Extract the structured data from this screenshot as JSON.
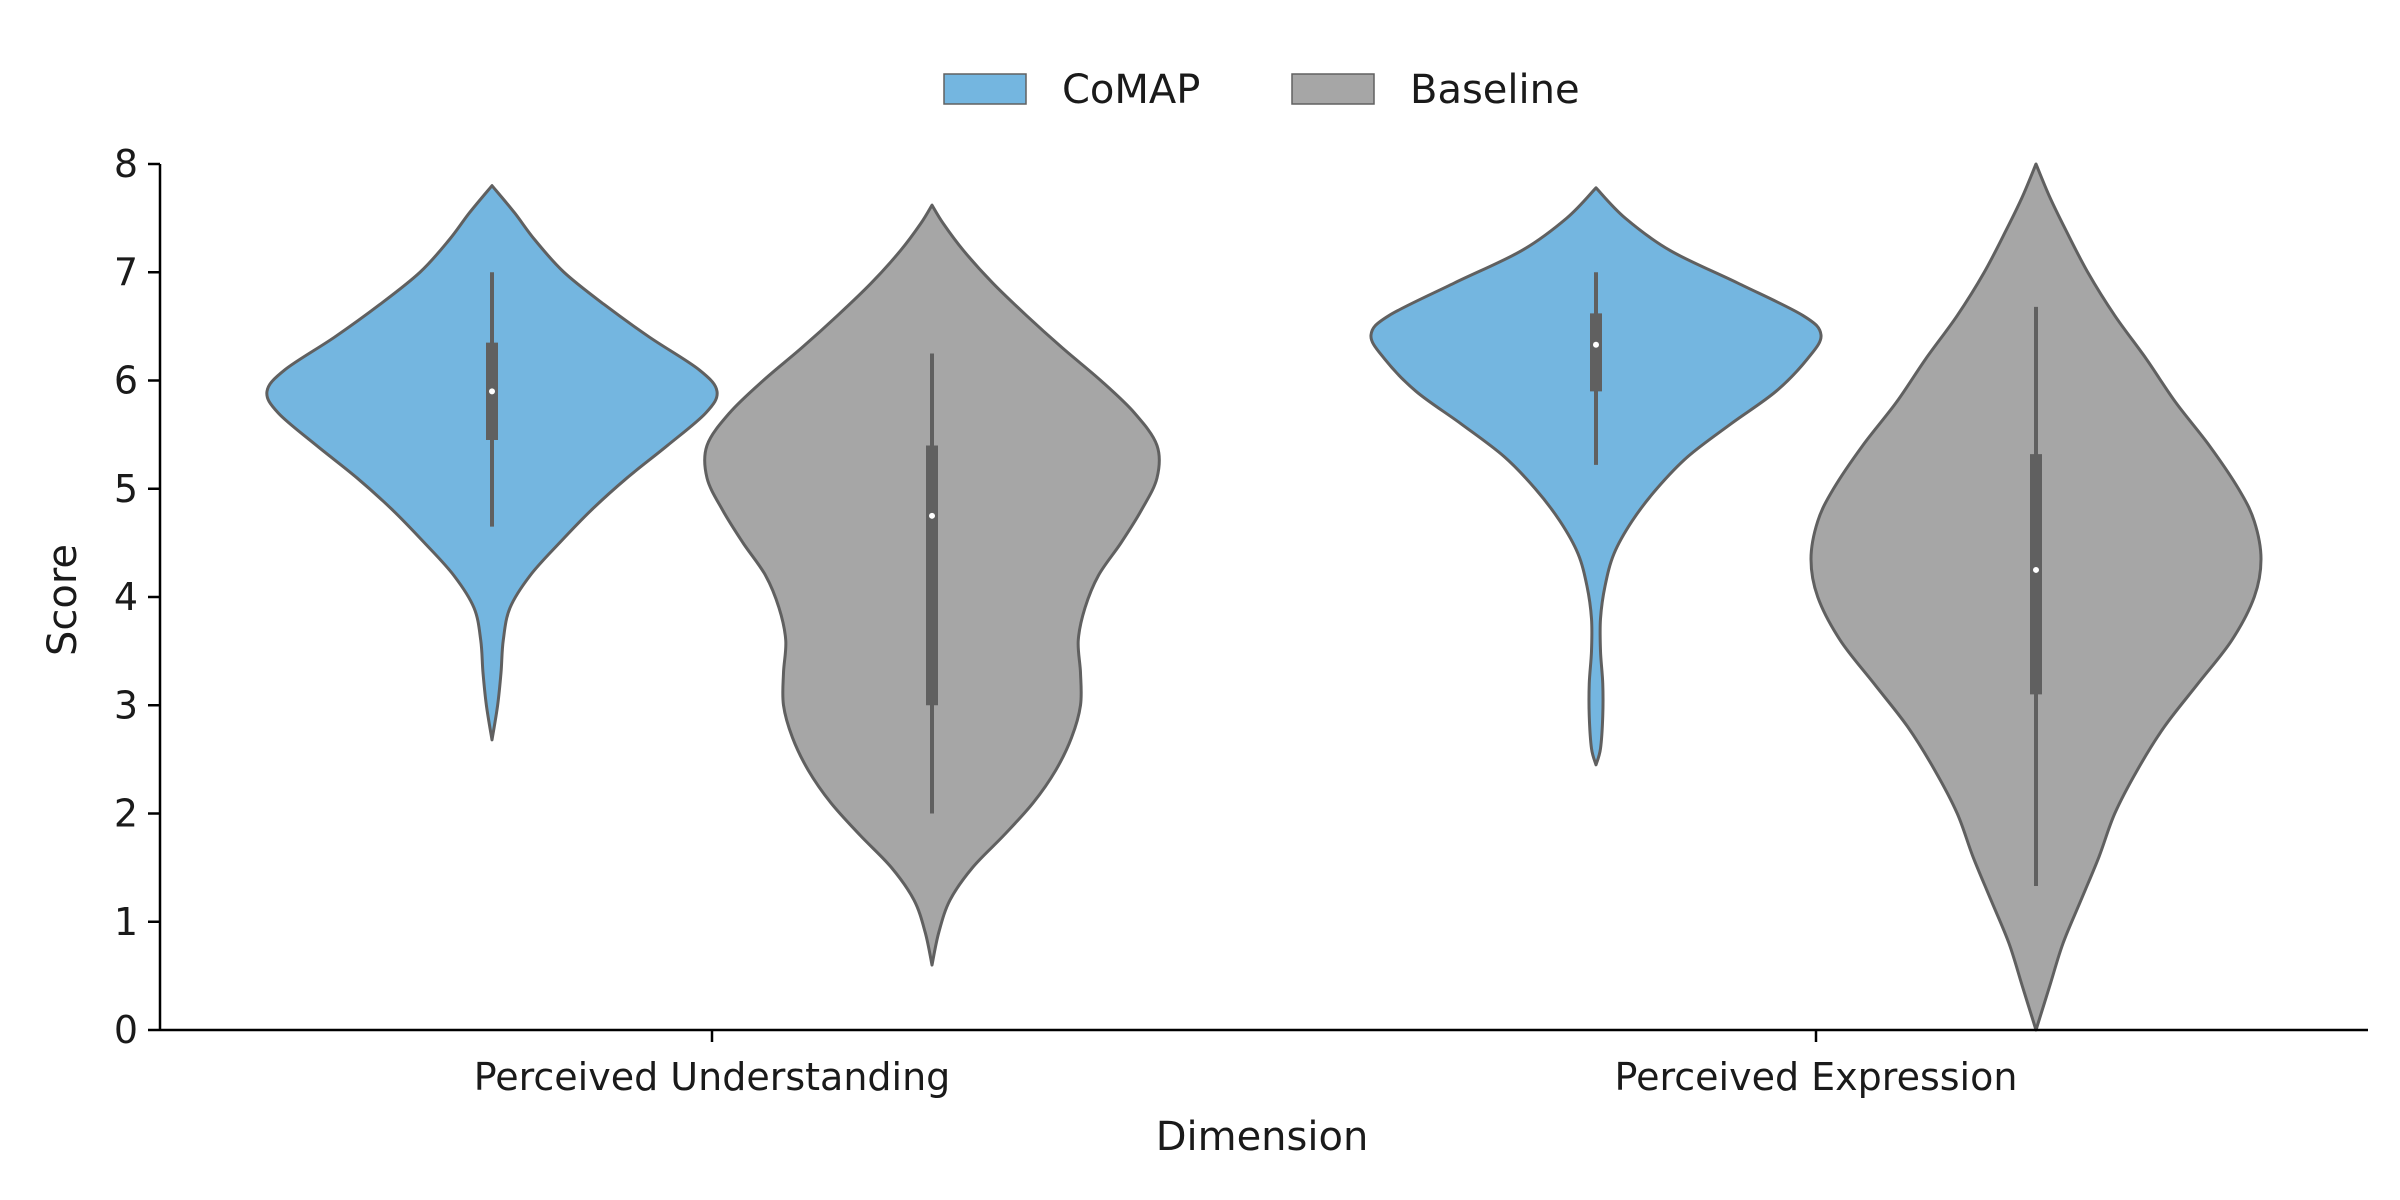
{
  "chart_data": {
    "type": "violin",
    "title": "",
    "xlabel": "Dimension",
    "ylabel": "Score",
    "ylim": [
      0,
      8
    ],
    "yticks": [
      0,
      1,
      2,
      3,
      4,
      5,
      6,
      7,
      8
    ],
    "categories": [
      "Perceived Understanding",
      "Perceived Expression"
    ],
    "legend": {
      "placement": "top-center",
      "entries": [
        {
          "name": "CoMAP",
          "color": "#74B6E0"
        },
        {
          "name": "Baseline",
          "color": "#A6A6A6"
        }
      ]
    },
    "grid": false,
    "outline_color": "#606060",
    "series": [
      {
        "name": "CoMAP",
        "color": "#74B6E0",
        "violins": [
          {
            "category": "Perceived Understanding",
            "range": [
              2.68,
              7.8
            ],
            "density": [
              [
                2.68,
                0.0
              ],
              [
                3.0,
                0.025
              ],
              [
                3.3,
                0.04
              ],
              [
                3.6,
                0.05
              ],
              [
                3.9,
                0.08
              ],
              [
                4.2,
                0.17
              ],
              [
                4.5,
                0.3
              ],
              [
                4.8,
                0.44
              ],
              [
                5.1,
                0.6
              ],
              [
                5.4,
                0.78
              ],
              [
                5.7,
                0.95
              ],
              [
                5.9,
                1.0
              ],
              [
                6.1,
                0.92
              ],
              [
                6.4,
                0.7
              ],
              [
                6.7,
                0.5
              ],
              [
                7.0,
                0.32
              ],
              [
                7.3,
                0.19
              ],
              [
                7.55,
                0.1
              ],
              [
                7.8,
                0.0
              ]
            ],
            "quartiles": [
              5.45,
              6.35
            ],
            "median": 5.9,
            "whiskers": [
              4.65,
              7.0
            ]
          },
          {
            "category": "Perceived Expression",
            "range": [
              2.45,
              7.78
            ],
            "density": [
              [
                2.45,
                0.0
              ],
              [
                2.6,
                0.02
              ],
              [
                2.9,
                0.03
              ],
              [
                3.2,
                0.03
              ],
              [
                3.5,
                0.02
              ],
              [
                3.8,
                0.02
              ],
              [
                4.1,
                0.04
              ],
              [
                4.4,
                0.08
              ],
              [
                4.7,
                0.16
              ],
              [
                5.0,
                0.27
              ],
              [
                5.3,
                0.41
              ],
              [
                5.6,
                0.6
              ],
              [
                5.9,
                0.8
              ],
              [
                6.2,
                0.94
              ],
              [
                6.42,
                1.0
              ],
              [
                6.6,
                0.92
              ],
              [
                6.9,
                0.63
              ],
              [
                7.2,
                0.33
              ],
              [
                7.5,
                0.13
              ],
              [
                7.78,
                0.0
              ]
            ],
            "quartiles": [
              5.9,
              6.62
            ],
            "median": 6.33,
            "whiskers": [
              5.22,
              7.0
            ]
          }
        ]
      },
      {
        "name": "Baseline",
        "color": "#A6A6A6",
        "violins": [
          {
            "category": "Perceived Understanding",
            "range": [
              0.6,
              7.62
            ],
            "density": [
              [
                0.6,
                0.0
              ],
              [
                0.9,
                0.03
              ],
              [
                1.2,
                0.08
              ],
              [
                1.5,
                0.18
              ],
              [
                1.8,
                0.32
              ],
              [
                2.1,
                0.45
              ],
              [
                2.4,
                0.55
              ],
              [
                2.7,
                0.62
              ],
              [
                3.0,
                0.66
              ],
              [
                3.3,
                0.66
              ],
              [
                3.6,
                0.65
              ],
              [
                3.9,
                0.68
              ],
              [
                4.2,
                0.74
              ],
              [
                4.5,
                0.84
              ],
              [
                4.8,
                0.93
              ],
              [
                5.1,
                1.0
              ],
              [
                5.4,
                1.0
              ],
              [
                5.7,
                0.9
              ],
              [
                6.0,
                0.75
              ],
              [
                6.3,
                0.58
              ],
              [
                6.6,
                0.42
              ],
              [
                6.9,
                0.27
              ],
              [
                7.2,
                0.14
              ],
              [
                7.45,
                0.05
              ],
              [
                7.62,
                0.0
              ]
            ],
            "quartiles": [
              3.0,
              5.4
            ],
            "median": 4.75,
            "whiskers": [
              2.0,
              6.25
            ]
          },
          {
            "category": "Perceived Expression",
            "range": [
              0.0,
              8.0
            ],
            "density": [
              [
                0.0,
                0.0
              ],
              [
                0.4,
                0.06
              ],
              [
                0.8,
                0.12
              ],
              [
                1.2,
                0.2
              ],
              [
                1.6,
                0.28
              ],
              [
                2.0,
                0.35
              ],
              [
                2.4,
                0.45
              ],
              [
                2.8,
                0.57
              ],
              [
                3.2,
                0.72
              ],
              [
                3.6,
                0.87
              ],
              [
                4.0,
                0.97
              ],
              [
                4.35,
                1.0
              ],
              [
                4.7,
                0.97
              ],
              [
                5.0,
                0.9
              ],
              [
                5.4,
                0.77
              ],
              [
                5.8,
                0.62
              ],
              [
                6.2,
                0.49
              ],
              [
                6.6,
                0.35
              ],
              [
                7.0,
                0.23
              ],
              [
                7.4,
                0.13
              ],
              [
                7.7,
                0.06
              ],
              [
                8.0,
                0.0
              ]
            ],
            "quartiles": [
              3.1,
              5.32
            ],
            "median": 4.25,
            "whiskers": [
              1.33,
              6.68
            ]
          }
        ]
      }
    ]
  }
}
